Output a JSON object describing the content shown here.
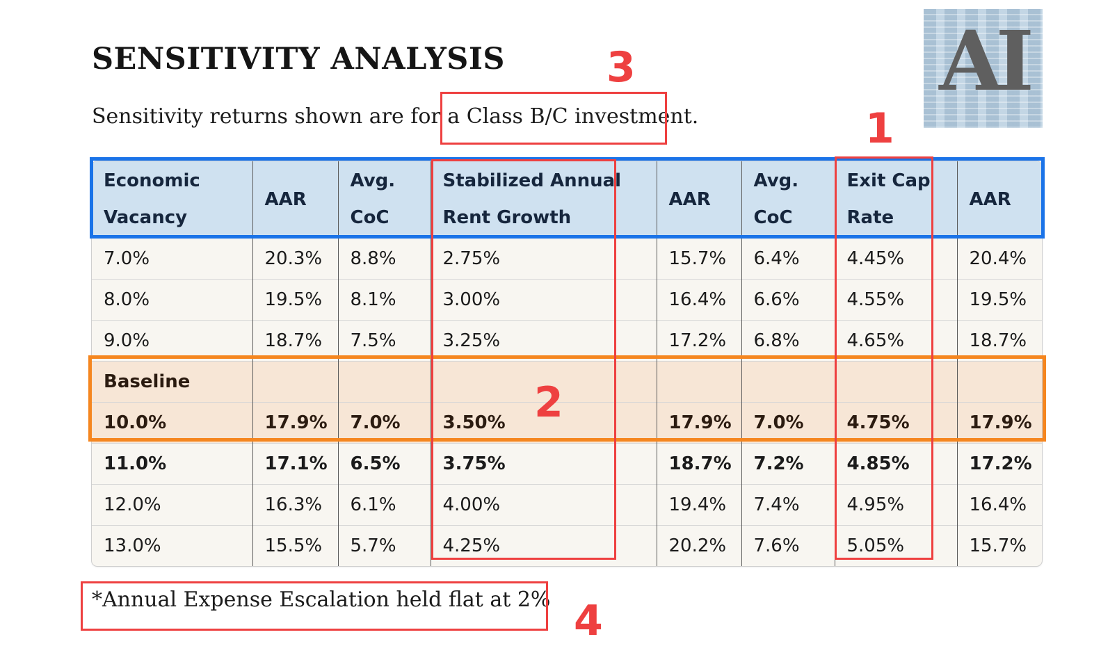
{
  "title": "SENSITIVITY ANALYSIS",
  "subtitle_prefix": "Sensitivity returns shown are for a ",
  "subtitle_highlight": "Class B/C investment.",
  "logo_text": "AI",
  "table": {
    "headers": [
      [
        "Economic",
        "Vacancy"
      ],
      [
        "AAR"
      ],
      [
        "Avg.",
        "CoC"
      ],
      [
        "Stabilized Annual",
        "Rent Growth"
      ],
      [
        "AAR"
      ],
      [
        "Avg.",
        "CoC"
      ],
      [
        "Exit Cap",
        "Rate"
      ],
      [
        "AAR"
      ]
    ],
    "rows_top": [
      [
        "7.0%",
        "20.3%",
        "8.8%",
        "2.75%",
        "15.7%",
        "6.4%",
        "4.45%",
        "20.4%"
      ],
      [
        "8.0%",
        "19.5%",
        "8.1%",
        "3.00%",
        "16.4%",
        "6.6%",
        "4.55%",
        "19.5%"
      ],
      [
        "9.0%",
        "18.7%",
        "7.5%",
        "3.25%",
        "17.2%",
        "6.8%",
        "4.65%",
        "18.7%"
      ]
    ],
    "baseline_label": "Baseline",
    "baseline_values": [
      "10.0%",
      "17.9%",
      "7.0%",
      "3.50%",
      "17.9%",
      "7.0%",
      "4.75%",
      "17.9%"
    ],
    "bold_row": [
      "11.0%",
      "17.1%",
      "6.5%",
      "3.75%",
      "18.7%",
      "7.2%",
      "4.85%",
      "17.2%"
    ],
    "rows_bottom": [
      [
        "12.0%",
        "16.3%",
        "6.1%",
        "4.00%",
        "19.4%",
        "7.4%",
        "4.95%",
        "16.4%"
      ],
      [
        "13.0%",
        "15.5%",
        "5.7%",
        "4.25%",
        "20.2%",
        "7.6%",
        "5.05%",
        "15.7%"
      ]
    ]
  },
  "footnote": "*Annual Expense Escalation held flat at 2%",
  "annotations": {
    "label_1": "1",
    "label_2": "2",
    "label_3": "3",
    "label_4": "4"
  },
  "colors": {
    "header_bg": "#cfe1f0",
    "baseline_bg": "#f7e6d6",
    "annot_red": "#ee4040",
    "annot_blue": "#1a73e8",
    "annot_orange": "#f5861f"
  }
}
